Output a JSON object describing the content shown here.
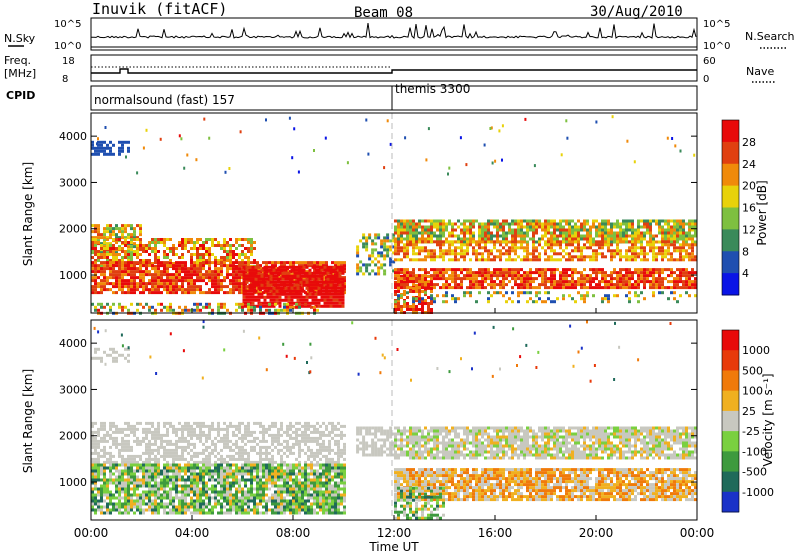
{
  "header": {
    "station": "Inuvik (fitACF)",
    "beam": "Beam 08",
    "date": "30/Aug/2010"
  },
  "chart_data": [
    {
      "type": "line",
      "panel": "noise",
      "left_label": "N.Sky",
      "right_label": "N.Search",
      "left_ticks": [
        "10^5",
        "10^0"
      ],
      "right_ticks": [
        "10^5",
        "10^0"
      ]
    },
    {
      "type": "line",
      "panel": "frequency",
      "left_label_1": "Freq.",
      "left_label_2": "[MHz]",
      "right_label": "Nave",
      "left_ticks": [
        "18",
        "8"
      ],
      "right_ticks": [
        "60",
        "0"
      ]
    },
    {
      "type": "table",
      "panel": "cpid",
      "label": "CPID",
      "modes": [
        {
          "name": "normalsound (fast)",
          "id": 157,
          "start_hour": 0
        },
        {
          "name": "themis",
          "id": 3300,
          "start_hour": 12
        }
      ]
    },
    {
      "type": "heatmap",
      "panel": "power",
      "ylabel": "Slant Range [km]",
      "yticks": [
        1000,
        2000,
        3000,
        4000
      ],
      "ylim": [
        180,
        4500
      ],
      "xlim": [
        0,
        24
      ],
      "colorbar_label": "Power [dB]",
      "colorbar_ticks": [
        "28",
        "24",
        "20",
        "16",
        "12",
        "8",
        "4"
      ],
      "colors": [
        "#0a14e6",
        "#1f4fb0",
        "#3a8a5a",
        "#7ec040",
        "#e8d20a",
        "#f08a0a",
        "#e04010",
        "#e80a0a"
      ],
      "scatter_bands": [
        {
          "range_km": [
            200,
            700
          ],
          "hours": [
            0,
            9
          ],
          "power_db": 24
        },
        {
          "range_km": [
            500,
            1200
          ],
          "hours": [
            6,
            10
          ],
          "power_db": 28
        },
        {
          "range_km": [
            700,
            1100
          ],
          "hours": [
            12,
            24
          ],
          "power_db": 22
        },
        {
          "range_km": [
            1400,
            2100
          ],
          "hours": [
            0,
            7
          ],
          "power_db": 16
        },
        {
          "range_km": [
            1500,
            2200
          ],
          "hours": [
            12,
            24
          ],
          "power_db": 14
        }
      ]
    },
    {
      "type": "heatmap",
      "panel": "velocity",
      "ylabel": "Slant Range [km]",
      "yticks": [
        1000,
        2000,
        3000,
        4000
      ],
      "ylim": [
        180,
        4500
      ],
      "xlim": [
        0,
        24
      ],
      "xticks": [
        "00:00",
        "04:00",
        "08:00",
        "12:00",
        "16:00",
        "20:00",
        "00:00"
      ],
      "xlabel": "Time UT",
      "colorbar_label": "Velocity [m s⁻¹]",
      "colorbar_ticks": [
        "1000",
        "500",
        "100",
        "25",
        "-25",
        "-100",
        "-500",
        "-1000"
      ],
      "colors": [
        "#1a32c8",
        "#1f6a5a",
        "#3e9a3e",
        "#7ad040",
        "#c8c8c0",
        "#f0b020",
        "#f07a0a",
        "#e83a0a",
        "#e80a0a"
      ]
    }
  ]
}
